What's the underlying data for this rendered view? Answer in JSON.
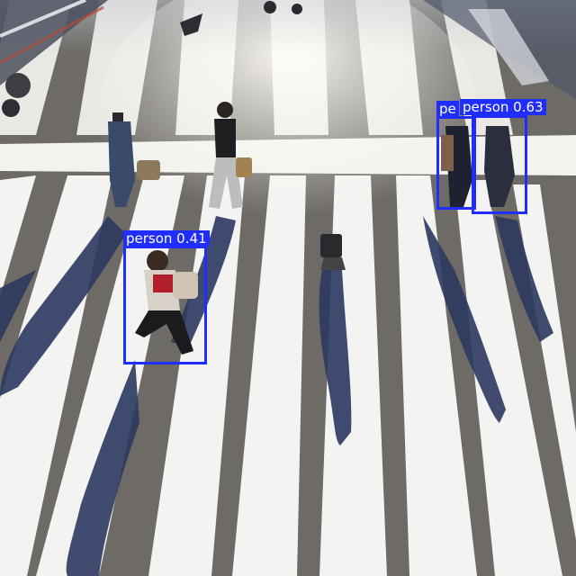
{
  "scene": {
    "subject": "pedestrians-crossing-zebra-crosswalk",
    "colors": {
      "asphalt": "#6e6b66",
      "stripe": "#f3f3f1",
      "shadow": "#2d3a5c",
      "glare": "#fbfaf6",
      "box": "#1f2dff",
      "label_text": "#ffffff"
    }
  },
  "detections": [
    {
      "class": "person",
      "score": "0.41",
      "label": "person 0.41"
    },
    {
      "class": "person",
      "score": "",
      "label": "pe"
    },
    {
      "class": "person",
      "score": "0.63",
      "label": "person 0.63"
    }
  ]
}
